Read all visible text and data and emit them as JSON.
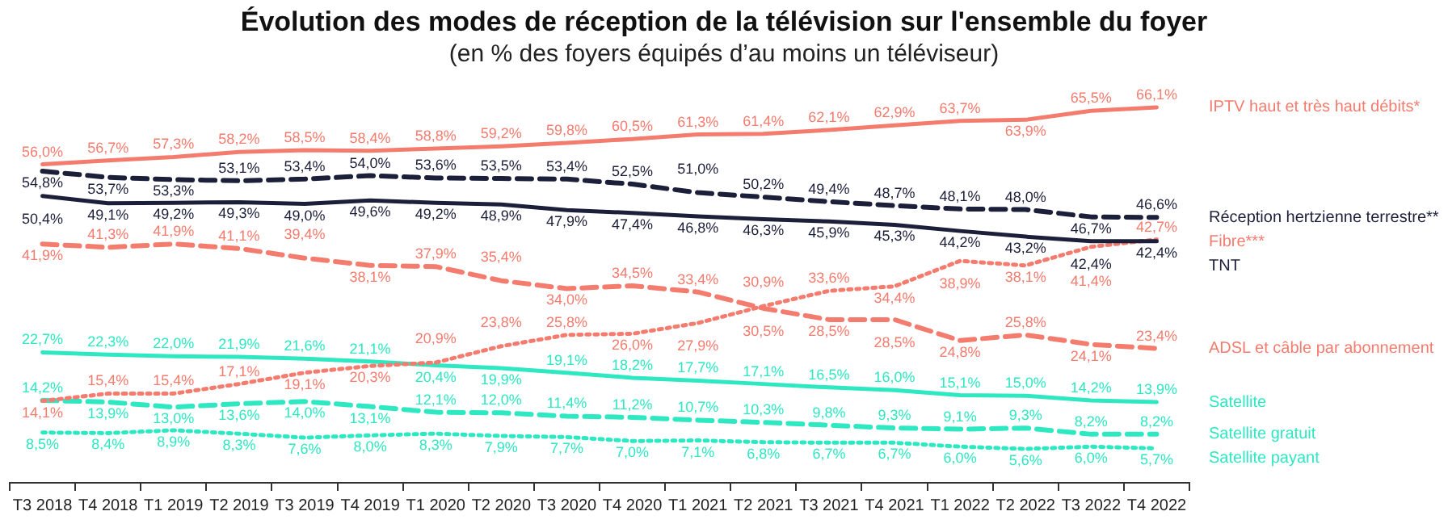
{
  "chart_data": {
    "type": "line",
    "title": "Évolution des modes de réception de la télévision sur l'ensemble du foyer",
    "subtitle": "(en % des foyers équipés d’au moins un téléviseur)",
    "categories": [
      "T3 2018",
      "T4 2018",
      "T1 2019",
      "T2 2019",
      "T3 2019",
      "T4 2019",
      "T1 2020",
      "T2 2020",
      "T3 2020",
      "T4 2020",
      "T1 2021",
      "T2 2021",
      "T3 2021",
      "T4 2021",
      "T1 2022",
      "T2 2022",
      "T3 2022",
      "T4 2022"
    ],
    "series": [
      {
        "name": "IPTV haut et très haut débits*",
        "color": "#f47c6e",
        "line_style": "solid",
        "values": [
          56.0,
          56.7,
          57.3,
          58.2,
          58.5,
          58.4,
          58.8,
          59.2,
          59.8,
          60.5,
          61.3,
          61.4,
          62.1,
          62.9,
          63.7,
          63.9,
          65.5,
          66.1
        ],
        "value_labels": [
          "56,0%",
          "56,7%",
          "57,3%",
          "58,2%",
          "58,5%",
          "58,4%",
          "58,8%",
          "59,2%",
          "59,8%",
          "60,5%",
          "61,3%",
          "61,4%",
          "62,1%",
          "62,9%",
          "63,7%",
          "63,9%",
          "65,5%",
          "66,1%"
        ]
      },
      {
        "name": "Réception hertzienne terrestre**",
        "color": "#1c1f3a",
        "line_style": "dashed",
        "values": [
          54.8,
          53.7,
          53.3,
          53.1,
          53.4,
          54.0,
          53.6,
          53.5,
          53.4,
          52.5,
          51.0,
          50.2,
          49.4,
          48.7,
          48.1,
          48.0,
          46.7,
          46.6
        ],
        "value_labels": [
          "54,8%",
          "53,7%",
          "53,3%",
          "53,1%",
          "53,4%",
          "54,0%",
          "53,6%",
          "53,5%",
          "53,4%",
          "52,5%",
          "51,0%",
          "50,2%",
          "49,4%",
          "48,7%",
          "48,1%",
          "48,0%",
          "46,7%",
          "46,6%"
        ]
      },
      {
        "name": "TNT",
        "color": "#1c1f3a",
        "line_style": "solid",
        "values": [
          50.4,
          49.1,
          49.2,
          49.3,
          49.0,
          49.6,
          49.2,
          48.9,
          47.9,
          47.4,
          46.8,
          46.3,
          45.9,
          45.3,
          44.2,
          43.2,
          42.4,
          42.4
        ],
        "value_labels": [
          "50,4%",
          "49,1%",
          "49,2%",
          "49,3%",
          "49,0%",
          "49,6%",
          "49,2%",
          "48,9%",
          "47,9%",
          "47,4%",
          "46,8%",
          "46,3%",
          "45,9%",
          "45,3%",
          "44,2%",
          "43,2%",
          "42,4%",
          "42,4%"
        ]
      },
      {
        "name": "Fibre***",
        "color": "#f47c6e",
        "line_style": "dotted",
        "values": [
          14.1,
          15.4,
          15.4,
          17.1,
          19.1,
          20.3,
          20.9,
          23.8,
          25.8,
          26.0,
          27.9,
          30.9,
          33.6,
          34.4,
          38.9,
          38.1,
          41.4,
          42.7
        ],
        "value_labels": [
          "14,1%",
          "15,4%",
          "15,4%",
          "17,1%",
          "19,1%",
          "20,3%",
          "20,9%",
          "23,8%",
          "25,8%",
          "26,0%",
          "27,9%",
          "30,9%",
          "33,6%",
          "34,4%",
          "38,9%",
          "38,1%",
          "41,4%",
          "42,7%"
        ]
      },
      {
        "name": "ADSL et câble par abonnement",
        "color": "#f47c6e",
        "line_style": "dashed",
        "values": [
          41.9,
          41.3,
          41.9,
          41.1,
          39.4,
          38.1,
          37.9,
          35.4,
          34.0,
          34.5,
          33.4,
          30.5,
          28.5,
          28.5,
          24.8,
          25.8,
          24.1,
          23.4
        ],
        "value_labels": [
          "41,9%",
          "41,3%",
          "41,9%",
          "41,1%",
          "39,4%",
          "38,1%",
          "37,9%",
          "35,4%",
          "34,0%",
          "34,5%",
          "33,4%",
          "30,5%",
          "28,5%",
          "28,5%",
          "24,8%",
          "25,8%",
          "24,1%",
          "23,4%"
        ]
      },
      {
        "name": "Satellite",
        "color": "#2ee8c2",
        "line_style": "solid",
        "values": [
          22.7,
          22.3,
          22.0,
          21.9,
          21.6,
          21.1,
          20.4,
          19.9,
          19.1,
          18.2,
          17.7,
          17.1,
          16.5,
          16.0,
          15.1,
          15.0,
          14.2,
          13.9
        ],
        "value_labels": [
          "22,7%",
          "22,3%",
          "22,0%",
          "21,9%",
          "21,6%",
          "21,1%",
          "20,4%",
          "19,9%",
          "19,1%",
          "18,2%",
          "17,7%",
          "17,1%",
          "16,5%",
          "16,0%",
          "15,1%",
          "15,0%",
          "14,2%",
          "13,9%"
        ]
      },
      {
        "name": "Satellite gratuit",
        "color": "#2ee8c2",
        "line_style": "dashed",
        "values": [
          14.2,
          13.9,
          13.0,
          13.6,
          14.0,
          13.1,
          12.1,
          12.0,
          11.4,
          11.2,
          10.7,
          10.3,
          9.8,
          9.3,
          9.1,
          9.3,
          8.2,
          8.2
        ],
        "value_labels": [
          "14,2%",
          "13,9%",
          "13,0%",
          "13,6%",
          "14,0%",
          "13,1%",
          "12,1%",
          "12,0%",
          "11,4%",
          "11,2%",
          "10,7%",
          "10,3%",
          "9,8%",
          "9,3%",
          "9,1%",
          "9,3%",
          "8,2%",
          "8,2%"
        ]
      },
      {
        "name": "Satellite payant",
        "color": "#2ee8c2",
        "line_style": "dotted",
        "values": [
          8.5,
          8.4,
          8.9,
          8.3,
          7.6,
          8.0,
          8.3,
          7.9,
          7.7,
          7.0,
          7.1,
          6.8,
          6.7,
          6.7,
          6.0,
          5.6,
          6.0,
          5.7
        ],
        "value_labels": [
          "8,5%",
          "8,4%",
          "8,9%",
          "8,3%",
          "7,6%",
          "8,0%",
          "8,3%",
          "7,9%",
          "7,7%",
          "7,0%",
          "7,1%",
          "6,8%",
          "6,7%",
          "6,7%",
          "6,0%",
          "5,6%",
          "6,0%",
          "5,7%"
        ]
      }
    ]
  }
}
